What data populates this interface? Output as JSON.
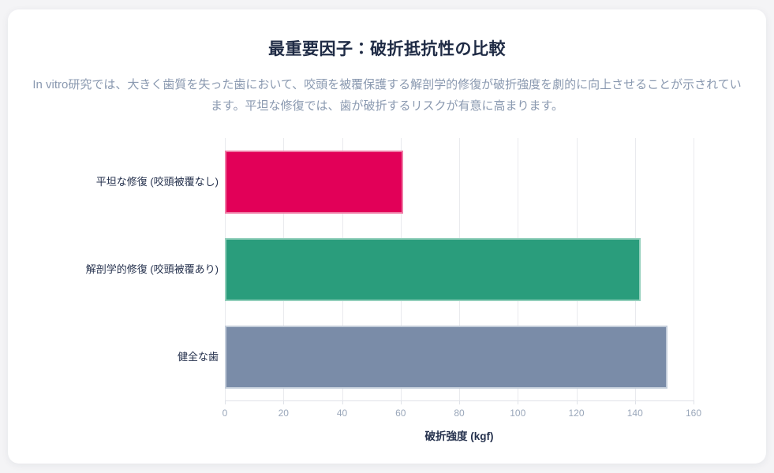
{
  "card": {
    "title": "最重要因子：破折抵抗性の比較",
    "subtitle": "In vitro研究では、大きく歯質を失った歯において、咬頭を被覆保護する解剖学的修復が破折強度を劇的に向上させることが示されています。平坦な修復では、歯が破折するリスクが有意に高まります。"
  },
  "chart_data": {
    "type": "bar",
    "orientation": "horizontal",
    "title": "最重要因子：破折抵抗性の比較",
    "categories": [
      "平坦な修復 (咬頭被覆なし)",
      "解剖学的修復 (咬頭被覆あり)",
      "健全な歯"
    ],
    "values": [
      61,
      142,
      151
    ],
    "xlabel": "破折強度 (kgf)",
    "ylabel": "",
    "xlim": [
      0,
      160
    ],
    "xticks": [
      0,
      20,
      40,
      60,
      80,
      100,
      120,
      140,
      160
    ],
    "grid": true,
    "legend_position": "none",
    "bar_fill_colors": [
      "#e20058",
      "#2a9d7c",
      "#7a8ca8"
    ],
    "bar_border_colors": [
      "#ef7aa5",
      "#92cfbb",
      "#c3cdda"
    ]
  },
  "theme": {
    "page_background": "#f4f4f6",
    "card_background": "#ffffff",
    "title_color": "#1f2b45",
    "subtitle_color": "#8a99b0",
    "category_label_color": "#25314d",
    "tick_label_color": "#9aa7ba",
    "grid_color": "#e9eaee",
    "axis_color": "#dfe2e8"
  }
}
